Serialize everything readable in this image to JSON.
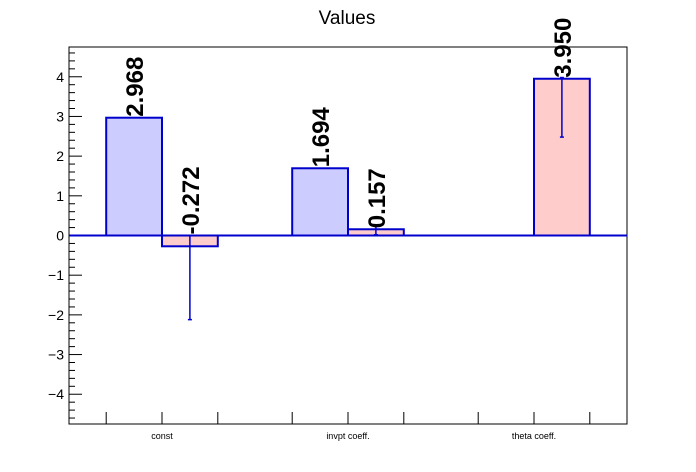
{
  "chart_data": {
    "type": "bar",
    "title": "Values",
    "xlabel": "",
    "ylabel": "",
    "ylim": [
      -4.75,
      4.75
    ],
    "yticks": [
      -4,
      -3,
      -2,
      -1,
      0,
      1,
      2,
      3,
      4
    ],
    "categories": [
      "const",
      "invpt coeff.",
      "theta coeff."
    ],
    "series": [
      {
        "color": "#ccccff",
        "stroke": "#0000cc",
        "values": [
          2.968,
          1.694,
          null
        ],
        "labels": [
          "2.968",
          "1.694",
          ""
        ],
        "errors": [
          null,
          null,
          null
        ]
      },
      {
        "color": "#ffcccc",
        "stroke": "#0000cc",
        "values": [
          -0.272,
          0.157,
          3.95
        ],
        "labels": [
          "-0.272",
          "0.157",
          "3.950"
        ],
        "errors": [
          [
            -2.12,
            0.0
          ],
          [
            0.02,
            0.23
          ],
          [
            2.48,
            3.98
          ]
        ]
      }
    ],
    "grid": false,
    "legend": "none"
  }
}
